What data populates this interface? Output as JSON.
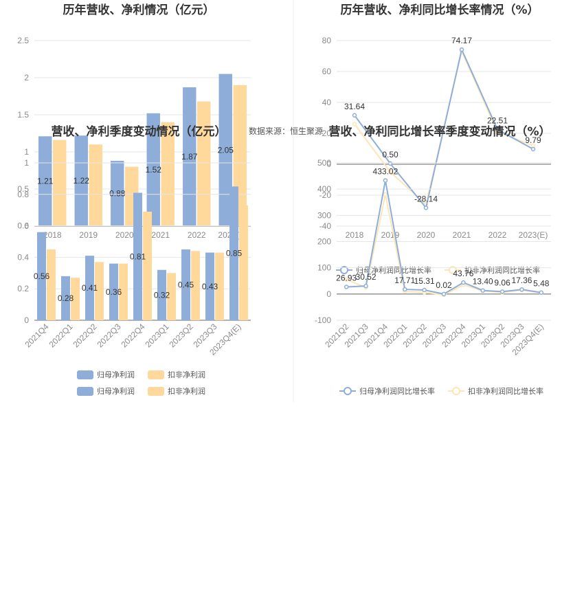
{
  "source_note": "数据来源：恒生聚源",
  "colors": {
    "blue": "#8eaed9",
    "yellow": "#fed99b",
    "line_yellow": "#fde6b6",
    "grid": "#e6e6e6",
    "axis": "#666666"
  },
  "chart_data": [
    {
      "id": "annual_bar",
      "type": "bar",
      "title": "历年营收、净利情况（亿元）",
      "categories": [
        "2018",
        "2019",
        "2020",
        "2021",
        "2022",
        "2023(E)"
      ],
      "series": [
        {
          "name": "归母净利润",
          "values": [
            1.21,
            1.22,
            0.88,
            1.52,
            1.87,
            2.05
          ]
        },
        {
          "name": "扣非净利润",
          "values": [
            1.16,
            1.1,
            0.8,
            1.4,
            1.68,
            1.9
          ]
        }
      ],
      "ylim": [
        0,
        2.5
      ],
      "yticks": [
        0,
        0.5,
        1,
        1.5,
        2,
        2.5
      ],
      "data_labels": [
        "1.21",
        "1.22",
        "0.88",
        "1.52",
        "1.87",
        "2.05"
      ],
      "grid": true,
      "legend": "bottom-center"
    },
    {
      "id": "annual_line",
      "type": "line",
      "title": "历年营收、净利同比增长率情况（%）",
      "categories": [
        "2018",
        "2019",
        "2020",
        "2021",
        "2022",
        "2023(E)"
      ],
      "series": [
        {
          "name": "归母净利润同比增长率",
          "values": [
            31.64,
            0.5,
            -28.14,
            74.17,
            22.51,
            9.79
          ]
        },
        {
          "name": "扣非净利润同比增长率",
          "values": [
            26,
            -5,
            -26,
            73,
            21,
            12
          ]
        }
      ],
      "ylim": [
        -40,
        80
      ],
      "yticks": [
        -40,
        -20,
        0,
        20,
        40,
        60,
        80
      ],
      "data_labels": [
        "31.64",
        "0.50",
        "-28.14",
        "74.17",
        "22.51",
        "9.79"
      ],
      "grid": true,
      "legend": "bottom-center"
    },
    {
      "id": "quarter_bar",
      "type": "bar",
      "title": "营收、净利季度变动情况（亿元）",
      "categories": [
        "2021Q4",
        "2022Q1",
        "2022Q2",
        "2022Q3",
        "2022Q4",
        "2023Q1",
        "2023Q2",
        "2023Q3",
        "2023Q4(E)"
      ],
      "series": [
        {
          "name": "归母净利润",
          "values": [
            0.56,
            0.28,
            0.41,
            0.36,
            0.81,
            0.32,
            0.45,
            0.43,
            0.85
          ]
        },
        {
          "name": "扣非净利润",
          "values": [
            0.45,
            0.27,
            0.37,
            0.36,
            0.69,
            0.3,
            0.44,
            0.43,
            0.73
          ]
        }
      ],
      "ylim": [
        0,
        1
      ],
      "yticks": [
        0,
        0.2,
        0.4,
        0.6,
        0.8,
        1
      ],
      "data_labels": [
        "0.56",
        "0.28",
        "0.41",
        "0.36",
        "0.81",
        "0.32",
        "0.45",
        "0.43",
        "0.85"
      ],
      "grid": true,
      "legend": "bottom-center"
    },
    {
      "id": "quarter_line",
      "type": "line",
      "title": "营收、净利同比增长率季度变动情况（%）",
      "categories": [
        "2021Q2",
        "2021Q3",
        "2021Q4",
        "2022Q1",
        "2022Q2",
        "2022Q3",
        "2022Q4",
        "2023Q1",
        "2023Q2",
        "2023Q3",
        "2023Q4(E)"
      ],
      "series": [
        {
          "name": "归母净利润同比增长率",
          "values": [
            26.93,
            30.52,
            433.02,
            17.71,
            15.31,
            0.02,
            43.76,
            13.4,
            9.06,
            17.36,
            5.48
          ]
        },
        {
          "name": "扣非净利润同比增长率",
          "values": [
            55,
            25,
            380,
            10,
            6,
            -3,
            35,
            12,
            6,
            15,
            4
          ]
        }
      ],
      "ylim": [
        -100,
        500
      ],
      "yticks": [
        -100,
        0,
        100,
        200,
        300,
        400,
        500
      ],
      "data_labels": [
        "26.93",
        "30.52",
        "433.02",
        "17.71",
        "15.31",
        "0.02",
        "43.76",
        "13.40",
        "9.06",
        "17.36",
        "5.48"
      ],
      "grid": true,
      "legend": "bottom-center"
    }
  ]
}
